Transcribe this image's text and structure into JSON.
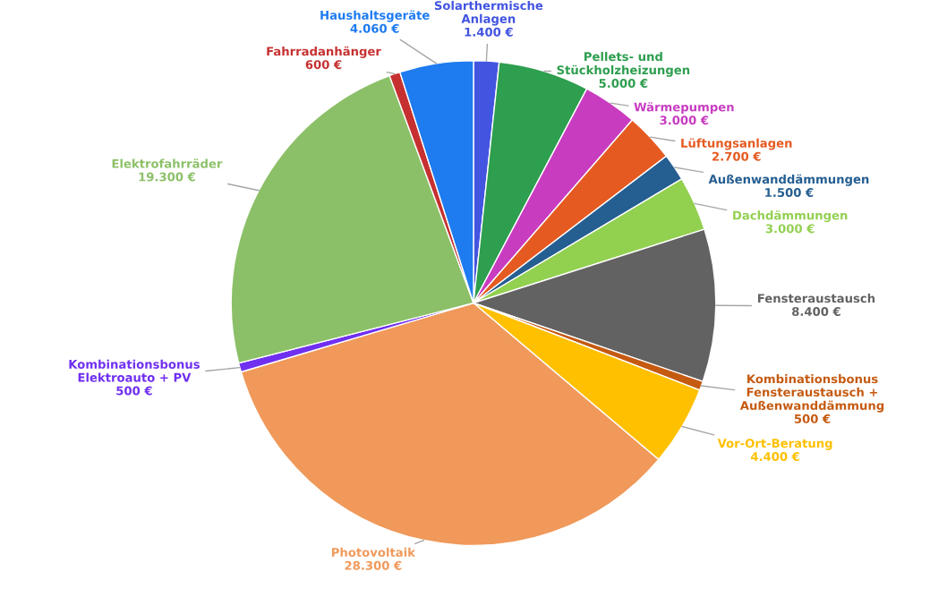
{
  "chart_data": {
    "type": "pie",
    "categories": [
      "Solarthermische\nAnlagen",
      "Pellets- und\nStückholzheizungen",
      "Wärmepumpen",
      "Lüftungsanlagen",
      "Außenwanddämmungen",
      "Dachdämmungen",
      "Fensteraustausch",
      "Kombinationsbonus\nFensteraustausch +\nAußenwanddämmung",
      "Vor-Ort-Beratung",
      "Photovoltaik",
      "Kombinationsbonus\nElektroauto + PV",
      "Elektrofahrräder",
      "Fahrradanhänger",
      "Haushaltsgeräte"
    ],
    "values": [
      1400,
      5000,
      3000,
      2700,
      1500,
      3000,
      8400,
      500,
      4400,
      28300,
      500,
      19300,
      600,
      4060
    ],
    "value_labels": [
      "1.400 €",
      "5.000 €",
      "3.000 €",
      "2.700 €",
      "1.500 €",
      "3.000 €",
      "8.400 €",
      "500 €",
      "4.400 €",
      "28.300 €",
      "500 €",
      "19.300 €",
      "600 €",
      "4.060 €"
    ],
    "colors": [
      "#4355e0",
      "#2e9e4f",
      "#c83cc0",
      "#e55a21",
      "#255e91",
      "#92d050",
      "#626262",
      "#c55a11",
      "#ffc000",
      "#f0995a",
      "#7030f0",
      "#8cc068",
      "#c63030",
      "#1e7bf0"
    ]
  }
}
